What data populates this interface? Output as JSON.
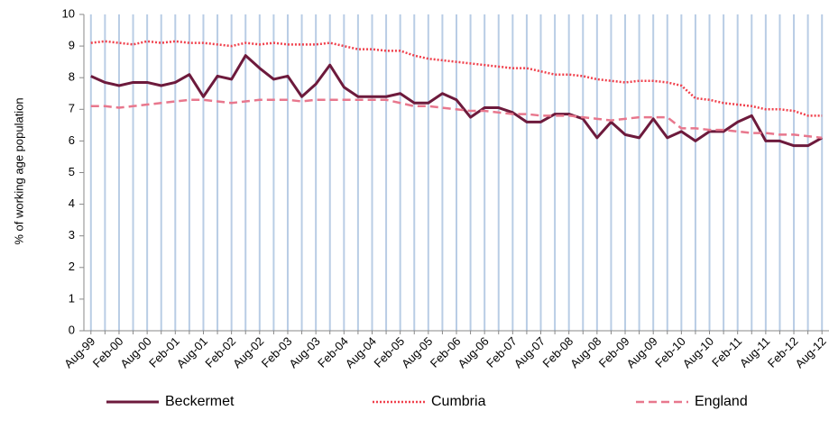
{
  "chart_data": {
    "type": "line",
    "y_label": "% of working age population",
    "categories": [
      "Aug-99",
      null,
      "Feb-00",
      null,
      "Aug-00",
      null,
      "Feb-01",
      null,
      "Aug-01",
      null,
      "Feb-02",
      null,
      "Aug-02",
      null,
      "Feb-03",
      null,
      "Aug-03",
      null,
      "Feb-04",
      null,
      "Aug-04",
      null,
      "Feb-05",
      null,
      "Aug-05",
      null,
      "Feb-06",
      null,
      "Aug-06",
      null,
      "Feb-07",
      null,
      "Aug-07",
      null,
      "Feb-08",
      null,
      "Aug-08",
      null,
      "Feb-09",
      null,
      "Aug-09",
      null,
      "Feb-10",
      null,
      "Aug-10",
      null,
      "Feb-11",
      null,
      "Aug-11",
      null,
      "Feb-12",
      null,
      "Aug-12"
    ],
    "series": [
      {
        "name": "Beckermet",
        "color": "#6d1a3c",
        "style": "solid",
        "values": [
          8.05,
          7.85,
          7.75,
          7.85,
          7.85,
          7.75,
          7.85,
          8.1,
          7.4,
          8.05,
          7.95,
          8.7,
          8.3,
          7.95,
          8.05,
          7.4,
          7.8,
          8.4,
          7.7,
          7.4,
          7.4,
          7.4,
          7.5,
          7.2,
          7.2,
          7.5,
          7.3,
          6.75,
          7.05,
          7.05,
          6.9,
          6.6,
          6.6,
          6.85,
          6.85,
          6.7,
          6.1,
          6.6,
          6.2,
          6.1,
          6.7,
          6.1,
          6.3,
          6.0,
          6.3,
          6.3,
          6.6,
          6.8,
          6.0,
          6.0,
          5.85,
          5.85,
          6.1
        ]
      },
      {
        "name": "Cumbria",
        "color": "#f0404c",
        "style": "dotted",
        "values": [
          9.1,
          9.15,
          9.1,
          9.05,
          9.15,
          9.1,
          9.15,
          9.1,
          9.1,
          9.05,
          9.0,
          9.1,
          9.05,
          9.1,
          9.05,
          9.05,
          9.05,
          9.1,
          9.0,
          8.9,
          8.9,
          8.85,
          8.85,
          8.7,
          8.6,
          8.55,
          8.5,
          8.45,
          8.4,
          8.35,
          8.3,
          8.3,
          8.2,
          8.1,
          8.1,
          8.05,
          7.95,
          7.9,
          7.85,
          7.9,
          7.9,
          7.85,
          7.75,
          7.35,
          7.3,
          7.2,
          7.15,
          7.1,
          7.0,
          7.0,
          6.95,
          6.8,
          6.8
        ]
      },
      {
        "name": "England",
        "color": "#e8778d",
        "style": "dashed",
        "values": [
          7.1,
          7.1,
          7.05,
          7.1,
          7.15,
          7.2,
          7.25,
          7.3,
          7.3,
          7.25,
          7.2,
          7.25,
          7.3,
          7.3,
          7.3,
          7.25,
          7.3,
          7.3,
          7.3,
          7.3,
          7.3,
          7.3,
          7.2,
          7.1,
          7.1,
          7.05,
          7.0,
          6.95,
          6.95,
          6.9,
          6.85,
          6.85,
          6.8,
          6.8,
          6.8,
          6.75,
          6.7,
          6.65,
          6.7,
          6.75,
          6.75,
          6.75,
          6.4,
          6.4,
          6.35,
          6.35,
          6.3,
          6.25,
          6.25,
          6.2,
          6.2,
          6.15,
          6.1
        ]
      }
    ],
    "ylim": [
      0,
      10
    ],
    "yticks": [
      0,
      1,
      2,
      3,
      4,
      5,
      6,
      7,
      8,
      9,
      10
    ],
    "x_grid": true,
    "grid_color": "#b9cde5",
    "legend": "bottom"
  }
}
